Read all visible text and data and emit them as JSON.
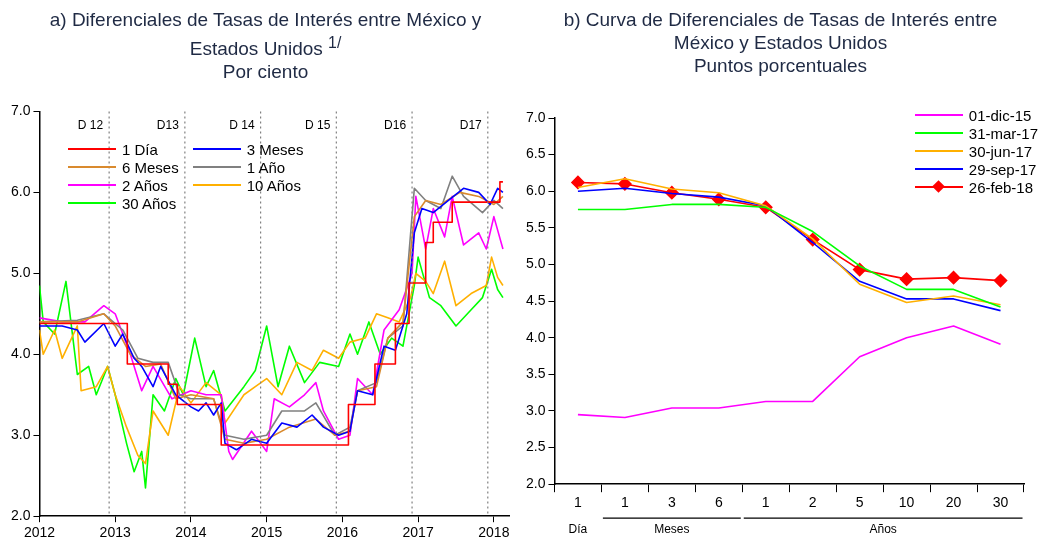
{
  "chart_data": [
    {
      "type": "line",
      "title": "a) Diferenciales de Tasas de Interés entre México y Estados Unidos $^{1/}$",
      "subtitle": "Por ciento",
      "xlim": [
        2012,
        2018.2
      ],
      "xticks": [
        2012,
        2013,
        2014,
        2015,
        2016,
        2017,
        2018
      ],
      "ylim": [
        2,
        7
      ],
      "yticks": [
        {
          "value": 2,
          "label": "2.0"
        },
        {
          "value": 3,
          "label": "3.0"
        },
        {
          "value": 4,
          "label": "4.0"
        },
        {
          "value": 5,
          "label": "5.0"
        },
        {
          "value": 6,
          "label": "6.0"
        },
        {
          "value": 7,
          "label": "7.0"
        }
      ],
      "grid": false,
      "legend": "top left",
      "ref_lines": [
        {
          "axis": "x",
          "value": 2012.92,
          "label": "D 12",
          "color": "#808080",
          "line_style": "dotted"
        },
        {
          "axis": "x",
          "value": 2013.92,
          "label": "D13",
          "color": "#808080",
          "line_style": "dotted"
        },
        {
          "axis": "x",
          "value": 2014.92,
          "label": "D 14",
          "color": "#808080",
          "line_style": "dotted"
        },
        {
          "axis": "x",
          "value": 2015.92,
          "label": "D 15",
          "color": "#808080",
          "line_style": "dotted"
        },
        {
          "axis": "x",
          "value": 2016.92,
          "label": "D16",
          "color": "#808080",
          "line_style": "dotted"
        },
        {
          "axis": "x",
          "value": 2017.92,
          "label": "D17",
          "color": "#808080",
          "line_style": "dotted"
        }
      ],
      "series": [
        {
          "name": "1 Día",
          "type": "step",
          "color": "#ff0000",
          "x": [
            2012.0,
            2013.16,
            2013.7,
            2013.82,
            2014.4,
            2016.08,
            2016.43,
            2016.7,
            2016.88,
            2017.1,
            2017.2,
            2017.45,
            2018.08,
            2018.12
          ],
          "values": [
            4.38,
            3.88,
            3.63,
            3.38,
            2.88,
            3.38,
            3.88,
            4.38,
            4.88,
            5.38,
            5.63,
            5.88,
            6.13,
            6.13
          ]
        },
        {
          "name": "3 Meses",
          "color": "#0000ff",
          "x": [
            2012.0,
            2012.3,
            2012.5,
            2012.6,
            2012.85,
            2013.0,
            2013.1,
            2013.25,
            2013.35,
            2013.5,
            2013.6,
            2013.8,
            2014.0,
            2014.1,
            2014.2,
            2014.3,
            2014.4,
            2014.45,
            2014.6,
            2014.8,
            2015.0,
            2015.2,
            2015.4,
            2015.6,
            2015.75,
            2015.95,
            2016.1,
            2016.2,
            2016.4,
            2016.55,
            2016.7,
            2016.85,
            2016.95,
            2017.05,
            2017.2,
            2017.4,
            2017.6,
            2017.8,
            2017.95,
            2018.05,
            2018.12
          ],
          "values": [
            4.35,
            4.35,
            4.3,
            4.15,
            4.38,
            4.1,
            4.25,
            3.95,
            3.85,
            3.6,
            3.85,
            3.5,
            3.35,
            3.3,
            3.4,
            3.25,
            3.4,
            2.9,
            2.82,
            2.95,
            2.9,
            3.15,
            3.1,
            3.25,
            3.1,
            3.0,
            3.05,
            3.55,
            3.5,
            4.1,
            4.05,
            4.5,
            5.5,
            5.8,
            5.75,
            5.9,
            6.05,
            6.0,
            5.85,
            6.05,
            6.0
          ]
        },
        {
          "name": "6 Meses",
          "color": "#d98a2e",
          "x": [
            2012.0,
            2012.5,
            2012.85,
            2013.0,
            2013.2,
            2013.4,
            2013.6,
            2013.8,
            2014.0,
            2014.3,
            2014.45,
            2014.7,
            2015.0,
            2015.3,
            2015.65,
            2015.9,
            2016.1,
            2016.2,
            2016.45,
            2016.6,
            2016.8,
            2016.95,
            2017.1,
            2017.3,
            2017.55,
            2017.8,
            2018.0,
            2018.12
          ],
          "values": [
            4.4,
            4.4,
            4.5,
            4.35,
            4.0,
            3.85,
            3.88,
            3.45,
            3.5,
            3.45,
            2.95,
            2.9,
            2.95,
            3.1,
            3.2,
            3.0,
            3.05,
            3.55,
            3.6,
            4.2,
            4.4,
            5.7,
            5.9,
            5.85,
            6.0,
            5.95,
            5.85,
            5.95
          ]
        },
        {
          "name": "1 Año",
          "color": "#808080",
          "x": [
            2012.0,
            2012.5,
            2012.85,
            2013.1,
            2013.3,
            2013.5,
            2013.7,
            2013.85,
            2014.0,
            2014.3,
            2014.45,
            2014.7,
            2015.0,
            2015.2,
            2015.5,
            2015.65,
            2015.9,
            2016.1,
            2016.2,
            2016.45,
            2016.6,
            2016.8,
            2016.95,
            2017.1,
            2017.3,
            2017.45,
            2017.6,
            2017.85,
            2018.0,
            2018.12
          ],
          "values": [
            4.4,
            4.42,
            4.5,
            4.3,
            3.95,
            3.9,
            3.9,
            3.5,
            3.45,
            3.45,
            3.0,
            2.95,
            3.0,
            3.3,
            3.3,
            3.4,
            3.0,
            3.1,
            3.55,
            3.65,
            4.2,
            4.35,
            6.05,
            5.9,
            5.8,
            6.2,
            5.95,
            5.75,
            5.9,
            5.8
          ]
        },
        {
          "name": "2 Años",
          "color": "#ff00ff",
          "x": [
            2012.0,
            2012.3,
            2012.6,
            2012.85,
            2013.0,
            2013.2,
            2013.35,
            2013.5,
            2013.75,
            2014.0,
            2014.2,
            2014.4,
            2014.5,
            2014.55,
            2014.8,
            2015.0,
            2015.1,
            2015.3,
            2015.5,
            2015.65,
            2015.75,
            2015.95,
            2016.1,
            2016.2,
            2016.4,
            2016.55,
            2016.75,
            2016.92,
            2016.97,
            2017.1,
            2017.2,
            2017.35,
            2017.45,
            2017.6,
            2017.8,
            2017.9,
            2018.0,
            2018.12
          ],
          "values": [
            4.45,
            4.4,
            4.4,
            4.6,
            4.5,
            4.0,
            3.55,
            3.85,
            3.45,
            3.55,
            3.5,
            3.5,
            2.8,
            2.7,
            3.05,
            2.8,
            3.45,
            3.35,
            3.5,
            3.65,
            3.3,
            2.95,
            3.0,
            3.7,
            3.5,
            4.3,
            4.55,
            5.0,
            5.95,
            5.3,
            5.8,
            5.45,
            5.95,
            5.35,
            5.5,
            5.3,
            5.7,
            5.3
          ]
        },
        {
          "name": "10 Años",
          "color": "#ffb000",
          "x": [
            2012.0,
            2012.05,
            2012.2,
            2012.3,
            2012.5,
            2012.55,
            2012.75,
            2012.9,
            2013.0,
            2013.15,
            2013.3,
            2013.4,
            2013.5,
            2013.7,
            2013.85,
            2014.0,
            2014.2,
            2014.4,
            2014.45,
            2014.7,
            2014.85,
            2015.0,
            2015.2,
            2015.4,
            2015.6,
            2015.75,
            2015.95,
            2016.1,
            2016.3,
            2016.45,
            2016.6,
            2016.75,
            2016.9,
            2016.97,
            2017.1,
            2017.2,
            2017.35,
            2017.5,
            2017.7,
            2017.9,
            2017.97,
            2018.05,
            2018.12
          ],
          "values": [
            4.3,
            4.0,
            4.3,
            3.95,
            4.35,
            3.55,
            3.6,
            3.85,
            3.5,
            3.1,
            2.75,
            2.65,
            3.3,
            3.0,
            3.6,
            3.4,
            3.65,
            3.5,
            3.15,
            3.5,
            3.6,
            3.7,
            3.5,
            3.9,
            3.8,
            4.05,
            3.95,
            4.15,
            4.2,
            4.5,
            4.45,
            4.4,
            4.7,
            5.0,
            4.9,
            4.75,
            5.15,
            4.6,
            4.75,
            4.85,
            5.2,
            4.95,
            4.85
          ]
        },
        {
          "name": "30 Años",
          "color": "#00ff00",
          "x": [
            2012.0,
            2012.05,
            2012.2,
            2012.35,
            2012.5,
            2012.65,
            2012.75,
            2012.9,
            2013.0,
            2013.15,
            2013.25,
            2013.35,
            2013.4,
            2013.5,
            2013.65,
            2013.8,
            2013.9,
            2014.05,
            2014.2,
            2014.3,
            2014.45,
            2014.7,
            2014.85,
            2015.0,
            2015.15,
            2015.3,
            2015.5,
            2015.7,
            2015.95,
            2016.1,
            2016.2,
            2016.35,
            2016.5,
            2016.65,
            2016.8,
            2016.95,
            2017.0,
            2017.15,
            2017.3,
            2017.5,
            2017.7,
            2017.85,
            2017.97,
            2018.05,
            2018.12
          ],
          "values": [
            4.85,
            4.4,
            4.25,
            4.9,
            3.75,
            3.85,
            3.5,
            3.85,
            3.5,
            2.9,
            2.55,
            2.8,
            2.35,
            3.5,
            3.3,
            3.7,
            3.5,
            4.2,
            3.6,
            3.8,
            3.3,
            3.6,
            3.8,
            4.35,
            3.6,
            4.1,
            3.65,
            3.9,
            3.85,
            4.25,
            4.0,
            4.4,
            4.0,
            4.2,
            4.1,
            4.85,
            5.2,
            4.7,
            4.6,
            4.35,
            4.55,
            4.7,
            5.05,
            4.8,
            4.7
          ]
        }
      ]
    },
    {
      "type": "line",
      "title": "b) Curva de Diferenciales de Tasas de Interés entre México y Estados Unidos",
      "subtitle": "Puntos porcentuales",
      "categories": [
        "1",
        "1",
        "3",
        "6",
        "1",
        "2",
        "5",
        "10",
        "20",
        "30"
      ],
      "annotations": [
        "Día",
        "Meses",
        "Años"
      ],
      "ylim": [
        2,
        7
      ],
      "yticks": [
        {
          "value": 2,
          "label": "2.0"
        },
        {
          "value": 2.5,
          "label": "2.5"
        },
        {
          "value": 3,
          "label": "3.0"
        },
        {
          "value": 3.5,
          "label": "3.5"
        },
        {
          "value": 4,
          "label": "4.0"
        },
        {
          "value": 4.5,
          "label": "4.5"
        },
        {
          "value": 5,
          "label": "5.0"
        },
        {
          "value": 5.5,
          "label": "5.5"
        },
        {
          "value": 6,
          "label": "6.0"
        },
        {
          "value": 6.5,
          "label": "6.5"
        },
        {
          "value": 7,
          "label": "7.0"
        }
      ],
      "grid": false,
      "legend": "top right",
      "series": [
        {
          "name": "01-dic-15",
          "color": "#ff00ff",
          "values": [
            2.95,
            2.91,
            3.04,
            3.04,
            3.13,
            3.13,
            3.74,
            4.0,
            4.16,
            3.91
          ]
        },
        {
          "name": "31-mar-17",
          "color": "#00ff00",
          "values": [
            5.75,
            5.75,
            5.82,
            5.82,
            5.78,
            5.45,
            4.98,
            4.66,
            4.66,
            4.42
          ]
        },
        {
          "name": "30-jun-17",
          "color": "#ffb000",
          "values": [
            6.05,
            6.17,
            6.03,
            5.98,
            5.8,
            5.35,
            4.73,
            4.48,
            4.57,
            4.45
          ]
        },
        {
          "name": "29-sep-17",
          "color": "#0000ff",
          "values": [
            6.0,
            6.04,
            5.97,
            5.92,
            5.8,
            5.3,
            4.77,
            4.53,
            4.53,
            4.37
          ]
        },
        {
          "name": "26-feb-18",
          "color": "#ff0000",
          "marker": "diamond",
          "values": [
            6.12,
            6.1,
            5.98,
            5.89,
            5.78,
            5.34,
            4.93,
            4.8,
            4.82,
            4.78
          ]
        }
      ]
    }
  ]
}
